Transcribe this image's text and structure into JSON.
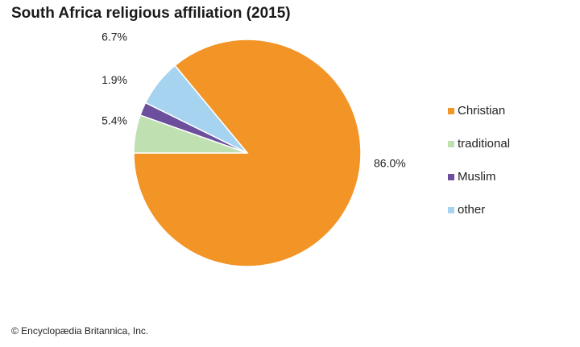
{
  "chart_data": {
    "type": "pie",
    "title": "South Africa religious affiliation (2015)",
    "slices": [
      {
        "label": "Christian",
        "value": 86.0,
        "value_label": "86.0%",
        "color": "#f39426"
      },
      {
        "label": "traditional",
        "value": 5.4,
        "value_label": "5.4%",
        "color": "#bfe0b0"
      },
      {
        "label": "Muslim",
        "value": 1.9,
        "value_label": "1.9%",
        "color": "#6b4f9c"
      },
      {
        "label": "other",
        "value": 6.7,
        "value_label": "6.7%",
        "color": "#a6d4f0"
      }
    ],
    "legend_position": "right"
  },
  "footer": {
    "copyright": "© Encyclopædia Britannica, Inc."
  }
}
